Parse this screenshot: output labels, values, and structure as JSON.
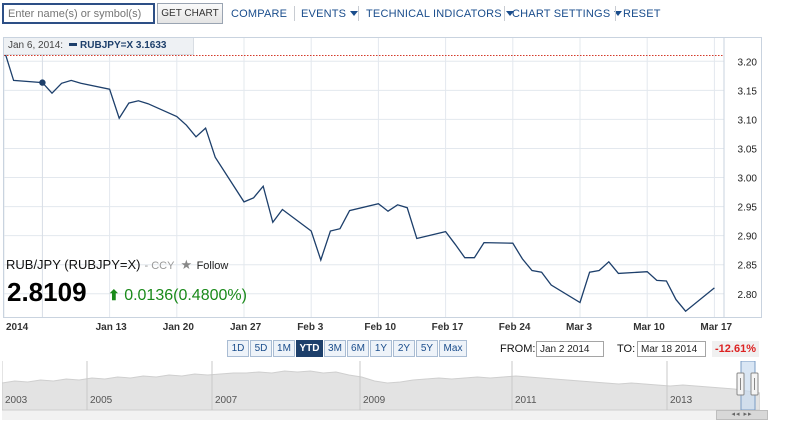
{
  "toolbar": {
    "search_placeholder": "Enter name(s) or symbol(s)",
    "get_chart": "GET CHART",
    "compare": "COMPARE",
    "events": "EVENTS",
    "technical_indicators": "TECHNICAL INDICATORS",
    "chart_settings": "CHART SETTINGS",
    "reset": "RESET"
  },
  "tooltip": {
    "date": "Jan 6, 2014:",
    "series_value": "RUBJPY=X 3.1633"
  },
  "quote": {
    "name": "RUB/JPY (RUBJPY=X)",
    "type": "- CCY",
    "follow": "Follow",
    "price": "2.8109",
    "change": "0.0136",
    "change_pct": "(0.4800%)"
  },
  "range": {
    "buttons": [
      "1D",
      "5D",
      "1M",
      "YTD",
      "3M",
      "6M",
      "1Y",
      "2Y",
      "5Y",
      "Max"
    ],
    "active": "YTD",
    "from_label": "FROM:",
    "from_value": "Jan 2 2014",
    "to_label": "TO:",
    "to_value": "Mar 18 2014",
    "pct": "-12.61%"
  },
  "navigator": {
    "years": [
      "2003",
      "2005",
      "2007",
      "2009",
      "2011",
      "2013"
    ]
  },
  "colors": {
    "line": "#1d3f6b",
    "reference": "#d43a2a",
    "up": "#1a8a1a",
    "down": "#d22222",
    "brand": "#1a4d8c"
  },
  "chart_data": {
    "type": "line",
    "series": [
      {
        "values": [
          [
            "2014-01-02",
            3.22
          ],
          [
            "2014-01-03",
            3.167
          ],
          [
            "2014-01-06",
            3.1633
          ],
          [
            "2014-01-07",
            3.145
          ],
          [
            "2014-01-08",
            3.162
          ],
          [
            "2014-01-09",
            3.167
          ],
          [
            "2014-01-10",
            3.162
          ],
          [
            "2014-01-13",
            3.152
          ],
          [
            "2014-01-14",
            3.102
          ],
          [
            "2014-01-15",
            3.128
          ],
          [
            "2014-01-16",
            3.132
          ],
          [
            "2014-01-17",
            3.127
          ],
          [
            "2014-01-20",
            3.105
          ],
          [
            "2014-01-21",
            3.09
          ],
          [
            "2014-01-22",
            3.07
          ],
          [
            "2014-01-23",
            3.085
          ],
          [
            "2014-01-24",
            3.035
          ],
          [
            "2014-01-27",
            2.958
          ],
          [
            "2014-01-28",
            2.965
          ],
          [
            "2014-01-29",
            2.985
          ],
          [
            "2014-01-30",
            2.923
          ],
          [
            "2014-01-31",
            2.945
          ],
          [
            "2014-02-03",
            2.908
          ],
          [
            "2014-02-04",
            2.858
          ],
          [
            "2014-02-05",
            2.908
          ],
          [
            "2014-02-06",
            2.912
          ],
          [
            "2014-02-07",
            2.943
          ],
          [
            "2014-02-10",
            2.955
          ],
          [
            "2014-02-11",
            2.942
          ],
          [
            "2014-02-12",
            2.953
          ],
          [
            "2014-02-13",
            2.948
          ],
          [
            "2014-02-14",
            2.895
          ],
          [
            "2014-02-17",
            2.907
          ],
          [
            "2014-02-18",
            2.885
          ],
          [
            "2014-02-19",
            2.862
          ],
          [
            "2014-02-20",
            2.862
          ],
          [
            "2014-02-21",
            2.888
          ],
          [
            "2014-02-24",
            2.887
          ],
          [
            "2014-02-25",
            2.86
          ],
          [
            "2014-02-26",
            2.84
          ],
          [
            "2014-02-27",
            2.837
          ],
          [
            "2014-02-28",
            2.815
          ],
          [
            "2014-03-03",
            2.785
          ],
          [
            "2014-03-04",
            2.837
          ],
          [
            "2014-03-05",
            2.84
          ],
          [
            "2014-03-06",
            2.855
          ],
          [
            "2014-03-07",
            2.835
          ],
          [
            "2014-03-10",
            2.838
          ],
          [
            "2014-03-11",
            2.823
          ],
          [
            "2014-03-12",
            2.822
          ],
          [
            "2014-03-13",
            2.79
          ],
          [
            "2014-03-14",
            2.77
          ],
          [
            "2014-03-17",
            2.81
          ]
        ]
      }
    ],
    "reference_line": 3.21,
    "highlight_point": [
      "2014-01-06",
      3.1633
    ],
    "y_ticks": [
      "3.20",
      "3.15",
      "3.10",
      "3.05",
      "3.00",
      "2.95",
      "2.90",
      "2.85",
      "2.80"
    ],
    "x_ticks": [
      {
        "date": "2014-01-02",
        "label": "2014"
      },
      {
        "date": "2014-01-13",
        "label": "Jan 13"
      },
      {
        "date": "2014-01-20",
        "label": "Jan 20"
      },
      {
        "date": "2014-01-27",
        "label": "Jan 27"
      },
      {
        "date": "2014-02-03",
        "label": "Feb 3"
      },
      {
        "date": "2014-02-10",
        "label": "Feb 10"
      },
      {
        "date": "2014-02-17",
        "label": "Feb 17"
      },
      {
        "date": "2014-02-24",
        "label": "Feb 24"
      },
      {
        "date": "2014-03-03",
        "label": "Mar 3"
      },
      {
        "date": "2014-03-10",
        "label": "Mar 10"
      },
      {
        "date": "2014-03-17",
        "label": "Mar 17"
      }
    ],
    "ylim": [
      2.76,
      3.24
    ],
    "grid": true
  }
}
